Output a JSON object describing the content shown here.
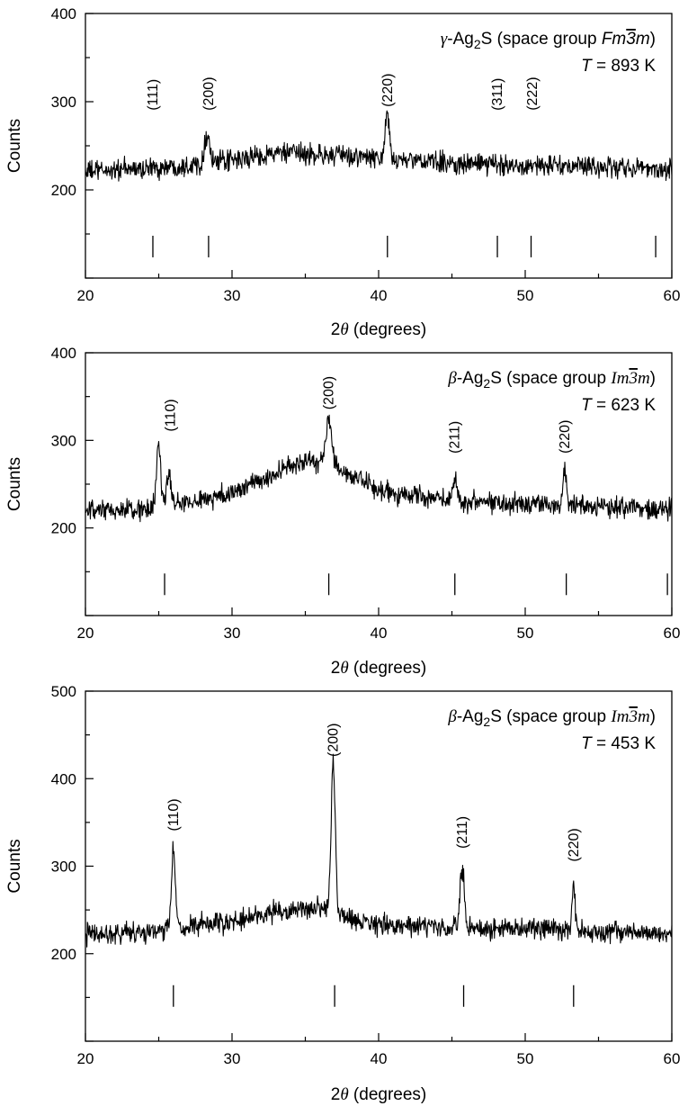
{
  "chart_data": [
    {
      "type": "line",
      "xlabel": "2θ (degrees)",
      "ylabel": "Counts",
      "xlim": [
        20,
        60
      ],
      "ylim": [
        100,
        400
      ],
      "x_ticks": [
        20,
        30,
        40,
        50,
        60
      ],
      "y_ticks": [
        200,
        300,
        400
      ],
      "x_tick_labels": [
        "20",
        "30",
        "40",
        "50",
        "60"
      ],
      "y_tick_labels": [
        "200",
        "300",
        "400"
      ],
      "legend": {
        "phase_prefix": "γ",
        "compound": "-Ag",
        "subscript": "2",
        "compound_suffix": "S",
        "space_group_prefix": " (space group ",
        "space_group_a": "Fm",
        "space_group_bar": "3",
        "space_group_b": "m",
        "space_group_suffix": ")",
        "temp_symbol": "T",
        "temp_value": " = 893 K",
        "position": "top-right"
      },
      "baseline": {
        "x": [
          20,
          25,
          30,
          33,
          36,
          40,
          45,
          50,
          55,
          60
        ],
        "y": [
          221,
          225,
          233,
          242,
          240,
          236,
          230,
          228,
          226,
          224
        ]
      },
      "noise_amplitude": 9,
      "peaks": [
        {
          "x": 28.3,
          "height": 32,
          "width": 0.18
        },
        {
          "x": 40.6,
          "height": 48,
          "width": 0.14
        }
      ],
      "hkl_labels": [
        {
          "text": "(111)",
          "x": 24.6,
          "y": 290
        },
        {
          "text": "(200)",
          "x": 28.4,
          "y": 290
        },
        {
          "text": "(220)",
          "x": 40.6,
          "y": 294
        },
        {
          "text": "(311)",
          "x": 48.1,
          "y": 290
        },
        {
          "text": "(222)",
          "x": 50.5,
          "y": 290
        }
      ],
      "bragg_positions": [
        24.6,
        28.4,
        40.6,
        48.1,
        50.4,
        58.9
      ],
      "grid": false
    },
    {
      "type": "line",
      "xlabel": "2θ (degrees)",
      "ylabel": "Counts",
      "xlim": [
        20,
        60
      ],
      "ylim": [
        100,
        400
      ],
      "x_ticks": [
        20,
        30,
        40,
        50,
        60
      ],
      "y_ticks": [
        200,
        300,
        400
      ],
      "x_tick_labels": [
        "20",
        "30",
        "40",
        "50",
        "60"
      ],
      "y_tick_labels": [
        "200",
        "300",
        "400"
      ],
      "legend": {
        "phase_prefix": "β",
        "compound": "-Ag",
        "subscript": "2",
        "compound_suffix": "S",
        "space_group_prefix": " (space group ",
        "space_group_a": "Im",
        "space_group_bar": "3",
        "space_group_b": "m",
        "space_group_suffix": ")",
        "temp_symbol": "T",
        "temp_value": " = 623 K",
        "position": "top-right"
      },
      "baseline": {
        "x": [
          20,
          25,
          30,
          33,
          35,
          37,
          40,
          45,
          50,
          55,
          60
        ],
        "y": [
          218,
          222,
          240,
          262,
          278,
          270,
          242,
          232,
          228,
          225,
          222
        ]
      },
      "noise_amplitude": 9,
      "peaks": [
        {
          "x": 25.0,
          "height": 75,
          "width": 0.14
        },
        {
          "x": 25.7,
          "height": 38,
          "width": 0.15
        },
        {
          "x": 36.6,
          "height": 50,
          "width": 0.2
        },
        {
          "x": 45.2,
          "height": 28,
          "width": 0.13
        },
        {
          "x": 52.7,
          "height": 42,
          "width": 0.12
        }
      ],
      "hkl_labels": [
        {
          "text": "(110)",
          "x": 25.8,
          "y": 310
        },
        {
          "text": "(200)",
          "x": 36.6,
          "y": 335
        },
        {
          "text": "(211)",
          "x": 45.2,
          "y": 285
        },
        {
          "text": "(220)",
          "x": 52.7,
          "y": 285
        }
      ],
      "bragg_positions": [
        25.4,
        36.6,
        45.2,
        52.8,
        59.7
      ],
      "grid": false
    },
    {
      "type": "line",
      "xlabel": "2θ (degrees)",
      "ylabel": "Counts",
      "xlim": [
        20,
        60
      ],
      "ylim": [
        100,
        500
      ],
      "x_ticks": [
        20,
        30,
        40,
        50,
        60
      ],
      "y_ticks": [
        200,
        300,
        400,
        500
      ],
      "x_tick_labels": [
        "20",
        "30",
        "40",
        "50",
        "60"
      ],
      "y_tick_labels": [
        "200",
        "300",
        "400",
        "500"
      ],
      "legend": {
        "phase_prefix": "β",
        "compound": "-Ag",
        "subscript": "2",
        "compound_suffix": "S",
        "space_group_prefix": " (space group ",
        "space_group_a": "Im",
        "space_group_bar": "3",
        "space_group_b": "m",
        "space_group_suffix": ")",
        "temp_symbol": "T",
        "temp_value": " = 453 K",
        "position": "top-right"
      },
      "baseline": {
        "x": [
          20,
          25,
          30,
          33,
          36,
          38,
          40,
          45,
          50,
          55,
          60
        ],
        "y": [
          222,
          226,
          236,
          248,
          252,
          240,
          233,
          230,
          228,
          226,
          224
        ]
      },
      "noise_amplitude": 9,
      "peaks": [
        {
          "x": 26.0,
          "height": 90,
          "width": 0.13
        },
        {
          "x": 36.9,
          "height": 170,
          "width": 0.14
        },
        {
          "x": 45.7,
          "height": 68,
          "width": 0.14
        },
        {
          "x": 53.3,
          "height": 48,
          "width": 0.11
        }
      ],
      "hkl_labels": [
        {
          "text": "(110)",
          "x": 26.0,
          "y": 340
        },
        {
          "text": "(200)",
          "x": 36.9,
          "y": 425
        },
        {
          "text": "(211)",
          "x": 45.7,
          "y": 320
        },
        {
          "text": "(220)",
          "x": 53.3,
          "y": 305
        }
      ],
      "bragg_positions": [
        26.0,
        37.0,
        45.8,
        53.3
      ],
      "grid": false
    }
  ]
}
